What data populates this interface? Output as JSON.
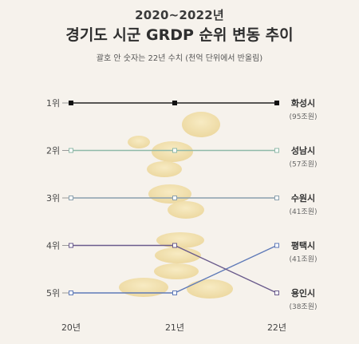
{
  "header": {
    "year_range": "2020~2022년",
    "title": "경기도 시군 GRDP 순위 변동 추이",
    "note": "괄호 안 숫자는 22년 수치 (천억 단위에서 반올림)"
  },
  "chart_data": {
    "type": "line",
    "title": "경기도 시군 GRDP 순위 변동 추이",
    "x": [
      "20년",
      "21년",
      "22년"
    ],
    "y_categories": [
      "1위",
      "2위",
      "3위",
      "4위",
      "5위"
    ],
    "series": [
      {
        "name": "화성시",
        "ranks": [
          1,
          1,
          1
        ],
        "label_2022": "(95조원)",
        "color": "#222222"
      },
      {
        "name": "성남시",
        "ranks": [
          2,
          2,
          2
        ],
        "label_2022": "(57조원)",
        "color": "#8fb9a8"
      },
      {
        "name": "수원시",
        "ranks": [
          3,
          3,
          3
        ],
        "label_2022": "(41조원)",
        "color": "#8aa0ad"
      },
      {
        "name": "평택시",
        "ranks": [
          5,
          5,
          4
        ],
        "label_2022": "(41조원)",
        "color": "#5f7ab8"
      },
      {
        "name": "용인시",
        "ranks": [
          4,
          4,
          5
        ],
        "label_2022": "(38조원)",
        "color": "#6a5b8c"
      }
    ]
  }
}
